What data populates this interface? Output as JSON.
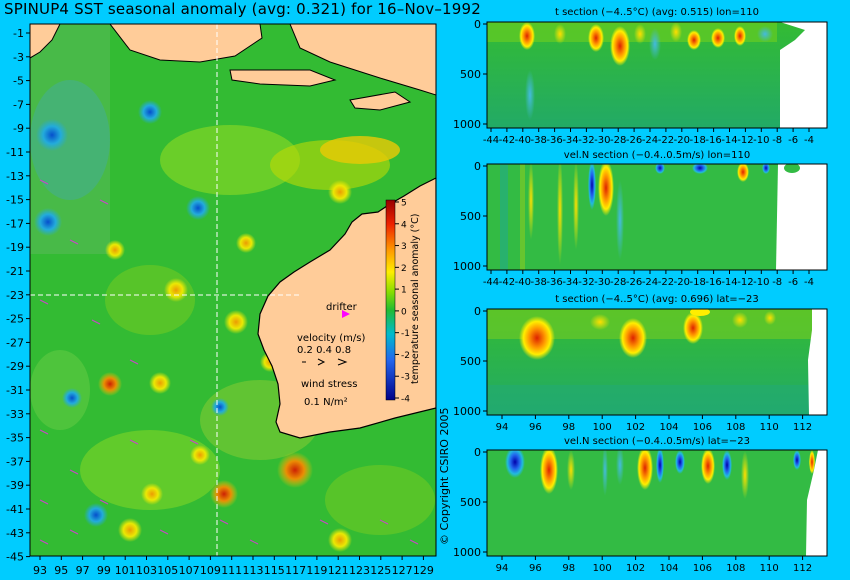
{
  "title": "SPINUP4 SST seasonal anomaly (avg: 0.321) for 16–Nov–1992",
  "copyright": "© Copyright CSIRO 2005",
  "colors": {
    "background": "#00ccff",
    "land": "#ffcc99",
    "ocean_base": "#33bb33",
    "vector": "#cc44cc",
    "drifter": "#ff00ff"
  },
  "map": {
    "x_ticks": [
      "93",
      "95",
      "97",
      "99",
      "101",
      "103",
      "105",
      "107",
      "109",
      "111",
      "113",
      "115",
      "117",
      "119",
      "121",
      "123",
      "125",
      "127",
      "129"
    ],
    "y_ticks": [
      "-1",
      "-3",
      "-5",
      "-7",
      "-9",
      "-11",
      "-13",
      "-15",
      "-17",
      "-19",
      "-21",
      "-23",
      "-25",
      "-27",
      "-29",
      "-31",
      "-33",
      "-35",
      "-37",
      "-39",
      "-41",
      "-43",
      "-45"
    ],
    "section_lines": {
      "lon": 110,
      "lat": -23
    },
    "legend": {
      "drifter_label": "drifter",
      "velocity_label": "velocity (m/s)",
      "velocity_values": "0.2 0.4 0.8",
      "wind_label": "wind stress",
      "wind_value": "0.1 N/m²"
    },
    "colorbar": {
      "ticks": [
        "5",
        "4",
        "3",
        "2",
        "1",
        "0",
        "-1",
        "-2",
        "-3",
        "-4"
      ],
      "label": "temperature seasonal anomaly (°C)",
      "range": [
        -4,
        5
      ]
    }
  },
  "chart_data": [
    {
      "type": "heatmap",
      "title": "t section (−4..5°C) (avg: 0.515) lon=110",
      "x_ticks": [
        "-44",
        "-42",
        "-40",
        "-38",
        "-36",
        "-34",
        "-32",
        "-30",
        "-28",
        "-26",
        "-24",
        "-22",
        "-20",
        "-18",
        "-16",
        "-14",
        "-12",
        "-10",
        "-8",
        "-6",
        "-4"
      ],
      "y_ticks": [
        "0",
        "500",
        "1000"
      ],
      "xlim": [
        -45,
        -2
      ],
      "ylim": [
        1050,
        0
      ]
    },
    {
      "type": "heatmap",
      "title": "vel.N section (−0.4..0.5m/s) lon=110",
      "x_ticks": [
        "-44",
        "-42",
        "-40",
        "-38",
        "-36",
        "-34",
        "-32",
        "-30",
        "-28",
        "-26",
        "-24",
        "-22",
        "-20",
        "-18",
        "-16",
        "-14",
        "-12",
        "-10",
        "-8",
        "-6",
        "-4"
      ],
      "y_ticks": [
        "0",
        "500",
        "1000"
      ],
      "xlim": [
        -45,
        -2
      ],
      "ylim": [
        1050,
        0
      ]
    },
    {
      "type": "heatmap",
      "title": "t section (−4..5°C) (avg: 0.696) lat=−23",
      "x_ticks": [
        "94",
        "96",
        "98",
        "100",
        "102",
        "104",
        "106",
        "108",
        "110",
        "112"
      ],
      "y_ticks": [
        "0",
        "500",
        "1000"
      ],
      "xlim": [
        92.5,
        114
      ],
      "ylim": [
        1050,
        0
      ]
    },
    {
      "type": "heatmap",
      "title": "vel.N section (−0.4..0.5m/s) lat=−23",
      "x_ticks": [
        "94",
        "96",
        "98",
        "100",
        "102",
        "104",
        "106",
        "108",
        "110",
        "112"
      ],
      "y_ticks": [
        "0",
        "500",
        "1000"
      ],
      "xlim": [
        92.5,
        114
      ],
      "ylim": [
        1050,
        0
      ]
    }
  ]
}
